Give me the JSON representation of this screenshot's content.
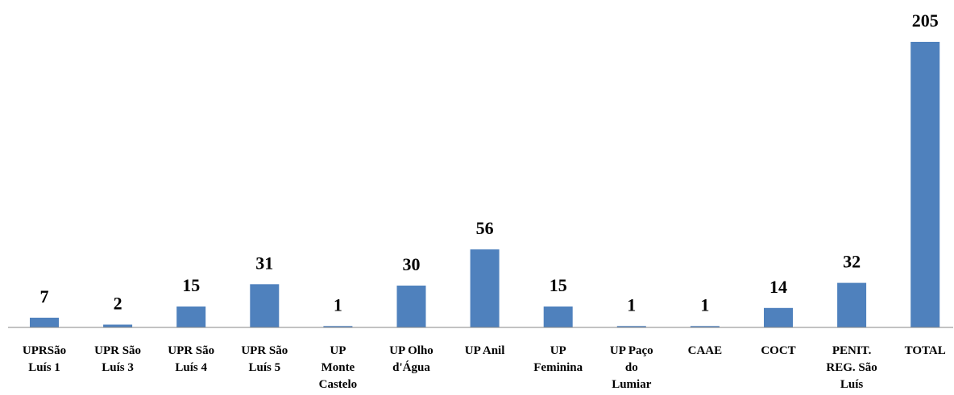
{
  "chart_data": {
    "type": "bar",
    "title": "",
    "xlabel": "",
    "ylabel": "",
    "ylim": [
      0,
      205
    ],
    "grid": false,
    "legend": "none",
    "bar_color": "#4f81bd",
    "categories": [
      "UPRSão Luís 1",
      "UPR São Luís 3",
      "UPR São Luís 4",
      "UPR São Luís 5",
      "UP Monte Castelo",
      "UP Olho d'Água",
      "UP Anil",
      "UP Feminina",
      "UP Paço do Lumiar",
      "CAAE",
      "COCT",
      "PENIT. REG. São Luís",
      "TOTAL"
    ],
    "category_label_lines": [
      [
        "UPRSão",
        "Luís 1"
      ],
      [
        "UPR São",
        "Luís 3"
      ],
      [
        "UPR São",
        "Luís 4"
      ],
      [
        "UPR São",
        "Luís 5"
      ],
      [
        "UP",
        "Monte",
        "Castelo"
      ],
      [
        "UP Olho",
        "d'Água"
      ],
      [
        "UP Anil"
      ],
      [
        "UP",
        "Feminina"
      ],
      [
        "UP Paço",
        "do",
        "Lumiar"
      ],
      [
        "CAAE"
      ],
      [
        "COCT"
      ],
      [
        "PENIT.",
        "REG. São",
        "Luís"
      ],
      [
        "TOTAL"
      ]
    ],
    "values": [
      7,
      2,
      15,
      31,
      1,
      30,
      56,
      15,
      1,
      1,
      14,
      32,
      205
    ]
  }
}
